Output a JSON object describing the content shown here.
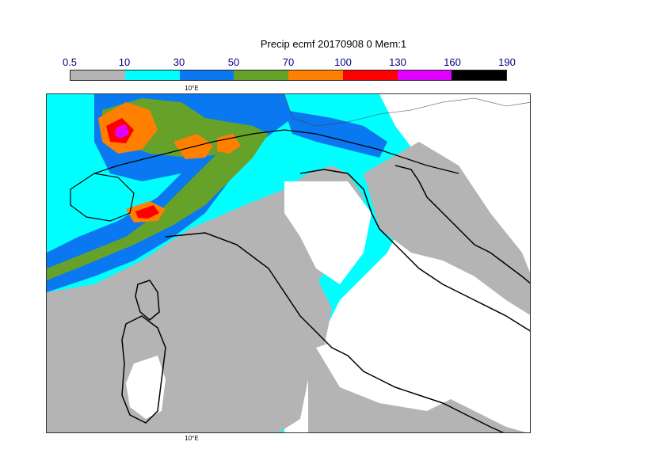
{
  "title": "Precip ecmf 20170908 0 Mem:1",
  "legend": {
    "ticks": [
      "0.5",
      "10",
      "30",
      "50",
      "70",
      "100",
      "130",
      "160",
      "190"
    ],
    "colors": [
      "#b4b4b4",
      "#00ffff",
      "#0a78f0",
      "#66a22a",
      "#ff8000",
      "#ff0000",
      "#e000ff",
      "#000000"
    ]
  },
  "map": {
    "lon_label_top": "10°E",
    "lon_label_bottom": "10°E",
    "colors": {
      "grey": "#b4b4b4",
      "cyan": "#00ffff",
      "blue": "#0a78f0",
      "green": "#66a22a",
      "orange": "#ff8000",
      "red": "#ff0000",
      "magenta": "#e000ff",
      "land_line": "#000000",
      "border_line": "#444444"
    }
  }
}
